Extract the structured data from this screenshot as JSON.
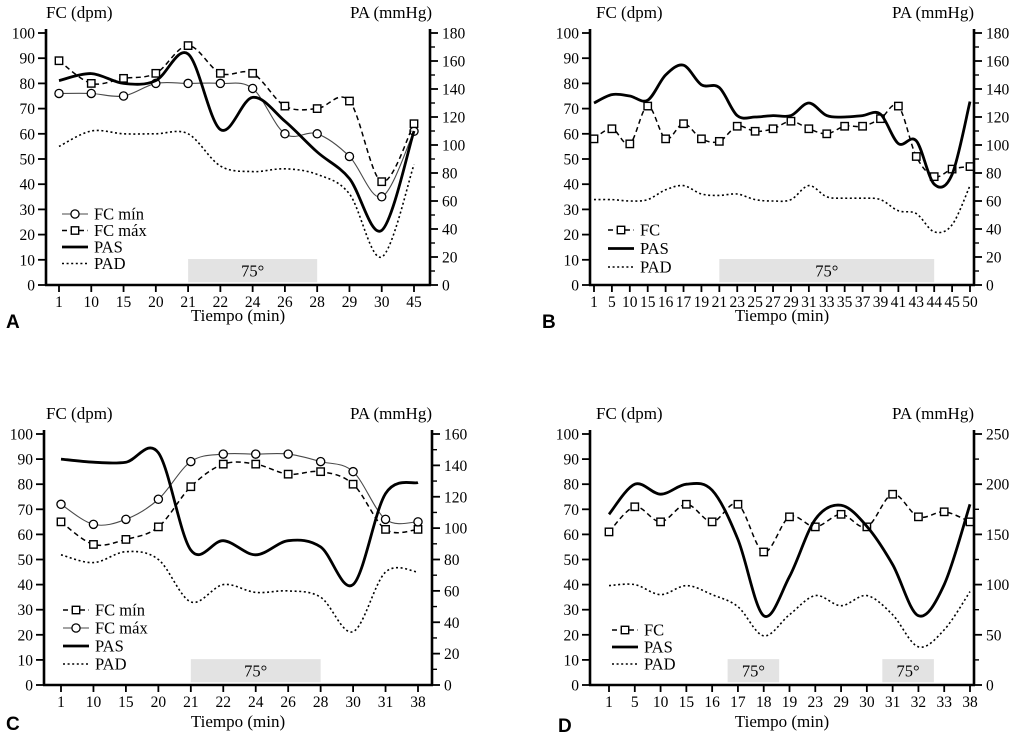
{
  "colors": {
    "line": "#000000",
    "thin_line": "#4a4a4a",
    "shade": "#e3e3e3",
    "background": "#ffffff"
  },
  "chart_data": [
    {
      "panel": "A",
      "type": "line",
      "title_left": "FC (dpm)",
      "title_right": "PA (mmHg)",
      "xlabel": "Tiempo (min)",
      "x_ticks": [
        "1",
        "10",
        "15",
        "20",
        "21",
        "22",
        "24",
        "26",
        "28",
        "29",
        "30",
        "45"
      ],
      "left_axis": {
        "min": 0,
        "max": 100,
        "step": 10
      },
      "right_axis": {
        "min": 0,
        "max": 180,
        "step": 20
      },
      "shades": [
        {
          "label": "75°",
          "from": 4,
          "to": 8
        }
      ],
      "legend": [
        {
          "label": "FC mín",
          "style": "thin-circle"
        },
        {
          "label": "FC máx",
          "style": "dashed-square"
        },
        {
          "label": "PAS",
          "style": "thick-solid"
        },
        {
          "label": "PAD",
          "style": "dotted"
        }
      ],
      "series": [
        {
          "name": "FC mín",
          "axis": "left",
          "style": "thin-circle",
          "values": [
            76,
            76,
            75,
            80,
            80,
            80,
            78,
            60,
            60,
            51,
            35,
            61
          ]
        },
        {
          "name": "FC máx",
          "axis": "left",
          "style": "dashed-square",
          "values": [
            89,
            80,
            82,
            84,
            95,
            84,
            84,
            71,
            70,
            73,
            41,
            64
          ]
        },
        {
          "name": "PAS",
          "axis": "right",
          "style": "thick-solid",
          "values": [
            146,
            151,
            144,
            146,
            165,
            111,
            134,
            117,
            95,
            76,
            39,
            110
          ]
        },
        {
          "name": "PAD",
          "axis": "right",
          "style": "dotted",
          "values": [
            99,
            110,
            108,
            108,
            108,
            85,
            81,
            83,
            79,
            65,
            20,
            86
          ]
        }
      ]
    },
    {
      "panel": "B",
      "type": "line",
      "title_left": "FC (dpm)",
      "title_right": "PA (mmHg)",
      "xlabel": "Tiempo (min)",
      "x_ticks": [
        "1",
        "5",
        "10",
        "15",
        "16",
        "17",
        "19",
        "21",
        "23",
        "25",
        "27",
        "29",
        "31",
        "33",
        "35",
        "37",
        "39",
        "41",
        "43",
        "44",
        "45",
        "50"
      ],
      "left_axis": {
        "min": 0,
        "max": 100,
        "step": 10
      },
      "right_axis": {
        "min": 0,
        "max": 180,
        "step": 20
      },
      "shades": [
        {
          "label": "75°",
          "from": 7,
          "to": 19
        }
      ],
      "legend": [
        {
          "label": "FC",
          "style": "dashed-square"
        },
        {
          "label": "PAS",
          "style": "thick-solid"
        },
        {
          "label": "PAD",
          "style": "dotted"
        }
      ],
      "series": [
        {
          "name": "FC",
          "axis": "left",
          "style": "dashed-square",
          "values": [
            58,
            62,
            56,
            71,
            58,
            64,
            58,
            57,
            63,
            61,
            62,
            65,
            62,
            60,
            63,
            63,
            66,
            71,
            51,
            43,
            46,
            47
          ]
        },
        {
          "name": "PAS",
          "axis": "right",
          "style": "thick-solid",
          "values": [
            130,
            136,
            135,
            132,
            150,
            157,
            143,
            141,
            121,
            120,
            121,
            121,
            130,
            121,
            120,
            121,
            122,
            101,
            103,
            72,
            79,
            131
          ]
        },
        {
          "name": "PAD",
          "axis": "right",
          "style": "dotted",
          "values": [
            61,
            61,
            60,
            61,
            68,
            71,
            65,
            64,
            65,
            61,
            60,
            61,
            71,
            63,
            62,
            62,
            61,
            53,
            51,
            38,
            43,
            71
          ]
        }
      ]
    },
    {
      "panel": "C",
      "type": "line",
      "title_left": "FC (dpm)",
      "title_right": "PA (mmHg)",
      "xlabel": "Tiempo (min)",
      "x_ticks": [
        "1",
        "10",
        "15",
        "20",
        "21",
        "22",
        "24",
        "26",
        "28",
        "30",
        "31",
        "38"
      ],
      "left_axis": {
        "min": 0,
        "max": 100,
        "step": 10
      },
      "right_axis": {
        "min": 0,
        "max": 160,
        "step": 20
      },
      "shades": [
        {
          "label": "75°",
          "from": 4,
          "to": 8
        }
      ],
      "legend": [
        {
          "label": "FC mín",
          "style": "dashed-square"
        },
        {
          "label": "FC máx",
          "style": "thin-circle"
        },
        {
          "label": "PAS",
          "style": "thick-solid"
        },
        {
          "label": "PAD",
          "style": "dotted"
        }
      ],
      "series": [
        {
          "name": "FC mín",
          "axis": "left",
          "style": "dashed-square",
          "values": [
            65,
            56,
            58,
            63,
            79,
            88,
            88,
            84,
            85,
            80,
            62,
            62
          ]
        },
        {
          "name": "FC máx",
          "axis": "left",
          "style": "thin-circle",
          "values": [
            72,
            64,
            66,
            74,
            89,
            92,
            92,
            92,
            89,
            85,
            66,
            65
          ]
        },
        {
          "name": "PAS",
          "axis": "right",
          "style": "thick-solid",
          "values": [
            144,
            142,
            142,
            148,
            86,
            92,
            83,
            92,
            88,
            64,
            122,
            129
          ]
        },
        {
          "name": "PAD",
          "axis": "right",
          "style": "dotted",
          "values": [
            83,
            78,
            85,
            80,
            53,
            64,
            59,
            60,
            56,
            34,
            72,
            72
          ]
        }
      ]
    },
    {
      "panel": "D",
      "type": "line",
      "title_left": "FC (dpm)",
      "title_right": "PA (mmHg)",
      "xlabel": "Tiempo (min)",
      "x_ticks": [
        "1",
        "5",
        "10",
        "15",
        "16",
        "17",
        "18",
        "19",
        "23",
        "29",
        "30",
        "31",
        "32",
        "33",
        "38"
      ],
      "left_axis": {
        "min": 0,
        "max": 100,
        "step": 10
      },
      "right_axis": {
        "min": 0,
        "max": 250,
        "step": 50
      },
      "shades": [
        {
          "label": "75°",
          "from": 4.6,
          "to": 6.6
        },
        {
          "label": "75°",
          "from": 10.6,
          "to": 12.6
        }
      ],
      "legend": [
        {
          "label": "FC",
          "style": "dashed-square"
        },
        {
          "label": "PAS",
          "style": "thick-solid"
        },
        {
          "label": "PAD",
          "style": "dotted"
        }
      ],
      "series": [
        {
          "name": "FC",
          "axis": "left",
          "style": "dashed-square",
          "values": [
            61,
            71,
            65,
            72,
            65,
            72,
            53,
            67,
            63,
            68,
            63,
            76,
            67,
            69,
            65
          ]
        },
        {
          "name": "PAS",
          "axis": "right",
          "style": "thick-solid",
          "values": [
            170,
            200,
            190,
            200,
            194,
            145,
            69,
            108,
            165,
            179,
            158,
            120,
            69,
            100,
            180
          ]
        },
        {
          "name": "PAD",
          "axis": "right",
          "style": "dotted",
          "values": [
            99,
            100,
            90,
            99,
            90,
            78,
            49,
            70,
            89,
            79,
            89,
            70,
            38,
            55,
            93
          ]
        }
      ]
    }
  ]
}
